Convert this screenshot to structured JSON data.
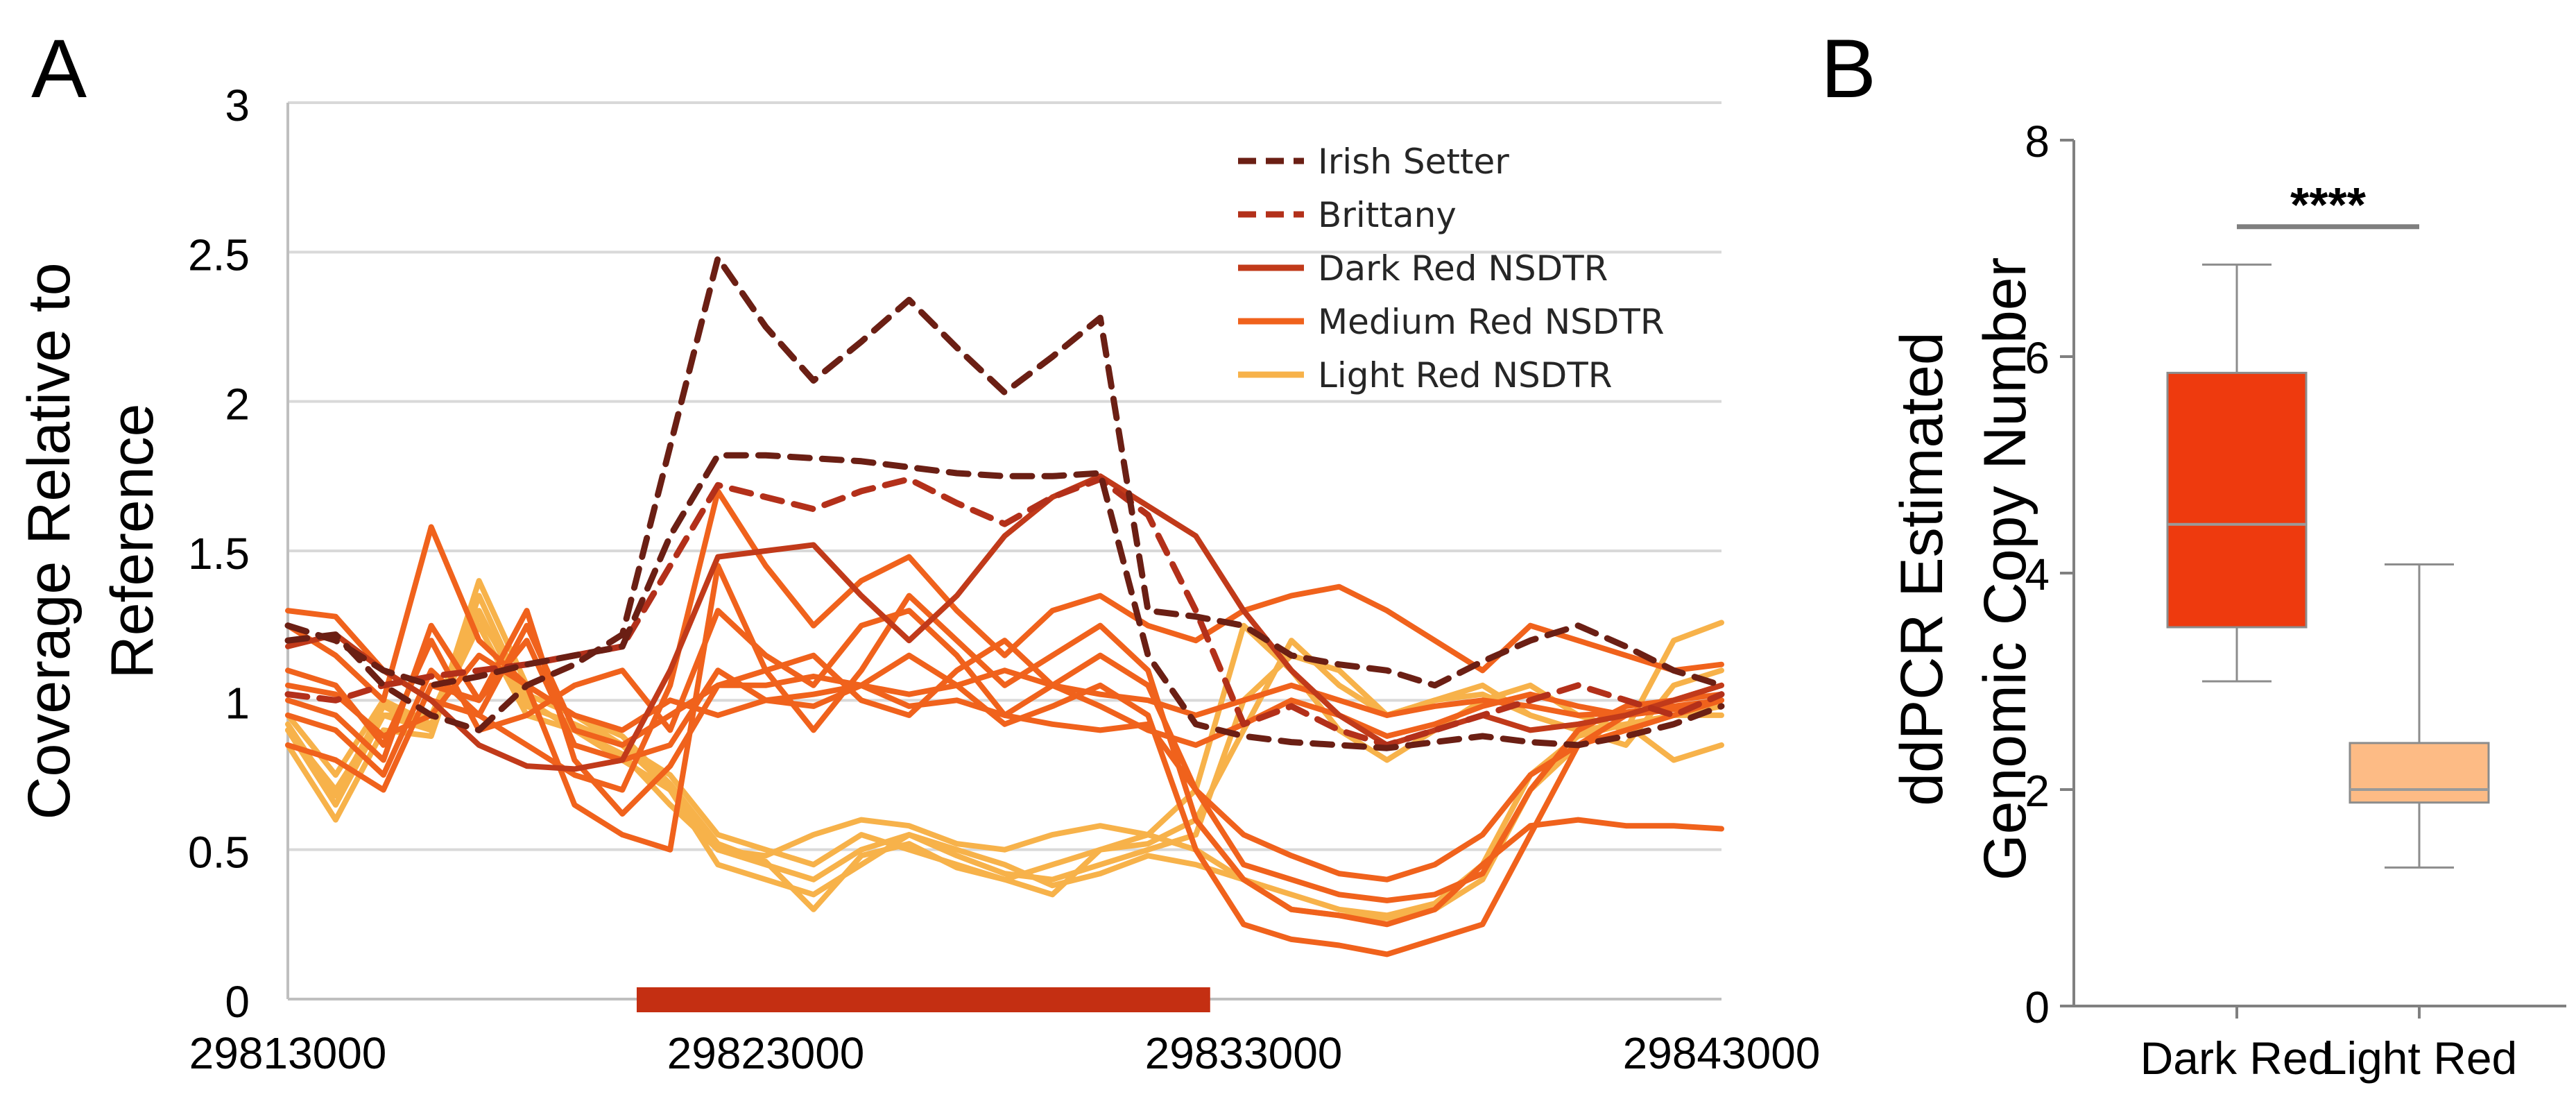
{
  "panels": {
    "a_label": "A",
    "b_label": "B"
  },
  "colors": {
    "irish_setter": "#6B1F14",
    "brittany": "#B3301A",
    "dark_red": "#C13A1A",
    "medium_red": "#F0621C",
    "light_red": "#F7B24A",
    "cnv_bar": "#C42F12",
    "box_dark": "#EE3A0E",
    "box_light": "#FDBB85",
    "grid": "#D9D9D9",
    "axis": "#BFBFBF"
  },
  "chart_data": [
    {
      "id": "A",
      "type": "line",
      "ylabel_line1": "Coverage Relative to",
      "ylabel_line2": "Reference",
      "ylim": [
        0,
        3
      ],
      "yticks": [
        "0",
        "0.5",
        "1",
        "1.5",
        "2",
        "2.5",
        "3"
      ],
      "xlim": [
        29813000,
        29843000
      ],
      "xticks": [
        "29813000",
        "29823000",
        "29833000",
        "29843000"
      ],
      "x": [
        29813000,
        29814000,
        29815000,
        29816000,
        29817000,
        29818000,
        29819000,
        29820000,
        29821000,
        29822000,
        29823000,
        29824000,
        29825000,
        29826000,
        29827000,
        29828000,
        29829000,
        29830000,
        29831000,
        29832000,
        29833000,
        29834000,
        29835000,
        29836000,
        29837000,
        29838000,
        29839000,
        29840000,
        29841000,
        29842000,
        29843000
      ],
      "annotation_bar": {
        "x_start": 29820300,
        "x_end": 29832300,
        "label": ""
      },
      "legend": [
        {
          "label": "Irish Setter",
          "style": "dashed",
          "color_key": "irish_setter"
        },
        {
          "label": "Brittany",
          "style": "dashed",
          "color_key": "brittany"
        },
        {
          "label": "Dark Red NSDTR",
          "style": "solid",
          "color_key": "dark_red"
        },
        {
          "label": "Medium Red NSDTR",
          "style": "solid",
          "color_key": "medium_red"
        },
        {
          "label": "Light Red NSDTR",
          "style": "solid",
          "color_key": "light_red"
        }
      ],
      "series": [
        {
          "name": "Irish Setter 1",
          "group": "irish_setter",
          "values": [
            1.2,
            1.22,
            1.05,
            0.95,
            0.9,
            1.05,
            1.12,
            1.22,
            1.85,
            2.48,
            2.25,
            2.07,
            2.2,
            2.34,
            2.18,
            2.03,
            2.15,
            2.28,
            1.3,
            1.28,
            1.25,
            1.15,
            1.12,
            1.1,
            1.05,
            1.13,
            1.2,
            1.25,
            1.18,
            1.1,
            1.05
          ]
        },
        {
          "name": "Irish Setter 2",
          "group": "irish_setter",
          "values": [
            1.25,
            1.2,
            1.1,
            1.05,
            1.08,
            1.12,
            1.15,
            1.18,
            1.55,
            1.82,
            1.82,
            1.81,
            1.8,
            1.78,
            1.76,
            1.75,
            1.75,
            1.76,
            1.15,
            0.92,
            0.88,
            0.86,
            0.85,
            0.84,
            0.86,
            0.88,
            0.86,
            0.85,
            0.88,
            0.92,
            0.98
          ]
        },
        {
          "name": "Brittany 1",
          "group": "brittany",
          "values": [
            1.02,
            1.0,
            1.05,
            1.08,
            1.1,
            1.12,
            1.15,
            1.18,
            1.45,
            1.72,
            1.68,
            1.64,
            1.7,
            1.74,
            1.66,
            1.59,
            1.68,
            1.74,
            1.62,
            1.3,
            0.92,
            0.98,
            0.9,
            0.85,
            0.9,
            0.95,
            1.0,
            1.05,
            1.0,
            0.95,
            1.02
          ]
        },
        {
          "name": "Dark Red NSDTR 1",
          "group": "dark_red",
          "values": [
            1.18,
            1.22,
            1.1,
            1.0,
            0.85,
            0.78,
            0.77,
            0.8,
            1.1,
            1.48,
            1.5,
            1.52,
            1.35,
            1.2,
            1.35,
            1.55,
            1.68,
            1.75,
            1.65,
            1.55,
            1.3,
            1.1,
            0.95,
            0.85,
            0.9,
            0.95,
            0.9,
            0.92,
            0.95,
            1.0,
            1.05
          ]
        },
        {
          "name": "Medium Red NSDTR 1",
          "group": "medium_red",
          "values": [
            1.3,
            1.28,
            1.1,
            1.0,
            0.95,
            0.85,
            0.75,
            0.7,
            1.05,
            1.7,
            1.45,
            1.25,
            1.4,
            1.48,
            1.3,
            1.15,
            1.3,
            1.35,
            1.25,
            1.2,
            1.3,
            1.35,
            1.38,
            1.3,
            1.2,
            1.1,
            1.25,
            1.2,
            1.15,
            1.1,
            1.12
          ]
        },
        {
          "name": "Medium Red NSDTR 2",
          "group": "medium_red",
          "values": [
            1.25,
            1.15,
            1.0,
            1.58,
            1.2,
            1.05,
            0.65,
            0.55,
            0.5,
            1.45,
            1.1,
            0.9,
            1.1,
            1.35,
            1.2,
            1.05,
            1.15,
            1.25,
            1.1,
            0.6,
            0.4,
            0.3,
            0.28,
            0.25,
            0.3,
            0.45,
            0.58,
            0.6,
            0.58,
            0.58,
            0.57
          ]
        },
        {
          "name": "Medium Red NSDTR 3",
          "group": "medium_red",
          "values": [
            1.1,
            1.05,
            0.85,
            1.2,
            0.9,
            0.95,
            1.05,
            1.1,
            0.9,
            1.3,
            1.15,
            1.05,
            1.25,
            1.3,
            1.15,
            0.95,
            1.05,
            1.15,
            1.05,
            0.7,
            0.55,
            0.48,
            0.42,
            0.4,
            0.45,
            0.55,
            0.75,
            0.85,
            0.9,
            0.95,
            1.0
          ]
        },
        {
          "name": "Medium Red NSDTR 4",
          "group": "medium_red",
          "values": [
            1.0,
            0.95,
            0.8,
            1.25,
            1.0,
            1.2,
            0.85,
            0.8,
            0.85,
            1.1,
            1.0,
            0.98,
            1.05,
            1.15,
            1.05,
            0.92,
            0.98,
            1.05,
            0.95,
            0.5,
            0.25,
            0.2,
            0.18,
            0.15,
            0.2,
            0.25,
            0.55,
            0.85,
            0.95,
            1.0,
            1.05
          ]
        },
        {
          "name": "Medium Red NSDTR 5",
          "group": "medium_red",
          "values": [
            0.95,
            0.9,
            0.75,
            1.1,
            0.95,
            1.25,
            0.9,
            0.85,
            0.95,
            1.05,
            1.1,
            1.15,
            1.0,
            0.95,
            1.1,
            1.2,
            1.05,
            0.98,
            0.9,
            0.85,
            0.92,
            1.0,
            0.95,
            0.88,
            0.92,
            0.98,
            1.02,
            0.98,
            0.95,
            0.97,
            1.0
          ]
        },
        {
          "name": "Medium Red NSDTR 6",
          "group": "medium_red",
          "values": [
            1.05,
            1.02,
            0.88,
            0.95,
            1.15,
            1.05,
            0.95,
            0.9,
            1.0,
            0.95,
            1.0,
            1.02,
            1.05,
            0.98,
            1.0,
            0.95,
            0.92,
            0.9,
            0.92,
            0.7,
            0.45,
            0.4,
            0.35,
            0.33,
            0.35,
            0.42,
            0.7,
            0.9,
            0.98,
            1.0,
            1.02
          ]
        },
        {
          "name": "Medium Red NSDTR 7",
          "group": "medium_red",
          "values": [
            0.85,
            0.8,
            0.7,
            1.05,
            1.0,
            1.3,
            0.8,
            0.62,
            0.78,
            1.05,
            1.05,
            1.08,
            1.05,
            1.02,
            1.05,
            1.1,
            1.05,
            1.02,
            1.0,
            0.95,
            1.0,
            1.05,
            1.0,
            0.95,
            0.98,
            1.0,
            0.98,
            0.95,
            0.96,
            0.98,
            1.0
          ]
        },
        {
          "name": "Light Red NSDTR 1",
          "group": "light_red",
          "values": [
            0.9,
            0.65,
            0.95,
            0.9,
            1.4,
            1.05,
            0.95,
            0.85,
            0.75,
            0.55,
            0.5,
            0.45,
            0.55,
            0.5,
            0.45,
            0.4,
            0.45,
            0.5,
            0.55,
            0.7,
            1.25,
            1.1,
            0.9,
            0.8,
            0.9,
            1.0,
            1.05,
            0.95,
            0.9,
            1.2,
            1.26
          ]
        },
        {
          "name": "Light Red NSDTR 2",
          "group": "light_red",
          "values": [
            0.85,
            0.6,
            0.9,
            0.88,
            1.35,
            1.0,
            0.9,
            0.8,
            0.7,
            0.5,
            0.45,
            0.4,
            0.5,
            0.55,
            0.48,
            0.42,
            0.4,
            0.45,
            0.5,
            0.55,
            1.0,
            1.15,
            1.1,
            0.95,
            1.0,
            1.05,
            0.95,
            0.9,
            0.85,
            1.05,
            1.1
          ]
        },
        {
          "name": "Light Red NSDTR 3",
          "group": "light_red",
          "values": [
            0.9,
            0.7,
            0.95,
            0.95,
            1.3,
            0.98,
            0.92,
            0.85,
            0.7,
            0.45,
            0.4,
            0.35,
            0.45,
            0.55,
            0.5,
            0.45,
            0.38,
            0.42,
            0.48,
            0.45,
            0.4,
            0.3,
            0.28,
            0.27,
            0.3,
            0.4,
            0.7,
            0.85,
            0.9,
            0.95,
            0.98
          ]
        },
        {
          "name": "Light Red NSDTR 4",
          "group": "light_red",
          "values": [
            0.95,
            0.75,
            1.0,
            0.92,
            1.25,
            0.95,
            0.9,
            0.82,
            0.65,
            0.5,
            0.48,
            0.55,
            0.6,
            0.58,
            0.52,
            0.5,
            0.55,
            0.58,
            0.55,
            0.5,
            0.4,
            0.35,
            0.3,
            0.28,
            0.32,
            0.45,
            0.75,
            0.88,
            0.92,
            0.95,
            0.95
          ]
        },
        {
          "name": "Light Red NSDTR 5",
          "group": "light_red",
          "values": [
            0.92,
            0.68,
            0.98,
            0.9,
            1.28,
            1.02,
            0.95,
            0.88,
            0.72,
            0.52,
            0.46,
            0.3,
            0.48,
            0.52,
            0.44,
            0.4,
            0.35,
            0.5,
            0.52,
            0.6,
            0.9,
            1.2,
            1.05,
            0.95,
            1.0,
            1.02,
            0.95,
            0.9,
            0.92,
            0.8,
            0.85
          ]
        }
      ]
    },
    {
      "id": "B",
      "type": "box",
      "ylabel_line1": "ddPCR Estimated",
      "ylabel_line2": "Genomic Copy Number",
      "ylim": [
        0,
        8
      ],
      "yticks": [
        "0",
        "2",
        "4",
        "6",
        "8"
      ],
      "categories": [
        "Dark Red",
        "Light Red"
      ],
      "boxes": [
        {
          "category": "Dark Red",
          "whisker_low": 3.0,
          "q1": 3.5,
          "median": 4.45,
          "q3": 5.85,
          "whisker_high": 6.85,
          "color_key": "box_dark"
        },
        {
          "category": "Light Red",
          "whisker_low": 1.28,
          "q1": 1.88,
          "median": 2.0,
          "q3": 2.43,
          "whisker_high": 4.08,
          "color_key": "box_light"
        }
      ],
      "significance": {
        "label": "****",
        "between": [
          "Dark Red",
          "Light Red"
        ],
        "y": 7.2
      }
    }
  ]
}
